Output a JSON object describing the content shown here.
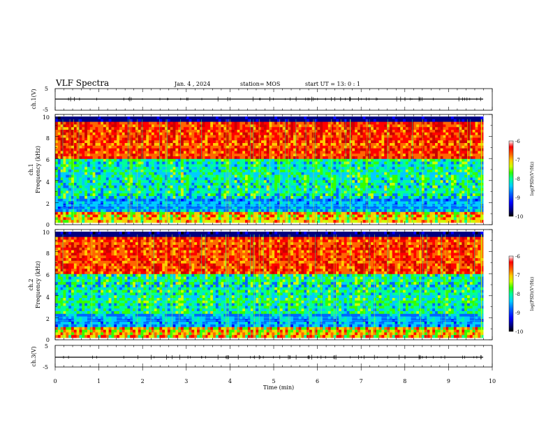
{
  "header": {
    "title": "VLF Spectra",
    "date": "Jan. 4 , 2024",
    "station": "station= MOS",
    "start": "start UT = 13: 0 : 1"
  },
  "colors": {
    "colormap": [
      "#000000",
      "#00007f",
      "#0000ff",
      "#0066ff",
      "#00ccff",
      "#00ff99",
      "#33ff00",
      "#ccff00",
      "#ffcc00",
      "#ff6600",
      "#ff0000",
      "#cc0000"
    ]
  },
  "chart_data": [
    {
      "type": "line",
      "name": "ch1-waveform",
      "ylabel": "ch.1(V)",
      "ylim": [
        -5,
        5
      ],
      "y_ticks": [
        "5",
        "-5"
      ],
      "xlim": [
        0,
        10
      ],
      "baseline_value": 0
    },
    {
      "type": "heatmap",
      "name": "ch1-spectrogram",
      "ylabel": "ch.1\nFrequency (kHz)",
      "ylabel_lines": [
        "ch.1",
        "Frequency (kHz)"
      ],
      "xlim": [
        0,
        9.83
      ],
      "ylim": [
        0,
        10
      ],
      "y_ticks": [
        "0",
        "2",
        "4",
        "6",
        "8",
        "10"
      ],
      "colorbar": {
        "label": "log(PSD)(V²/Hz)",
        "range": [
          -10,
          -6
        ],
        "ticks": [
          "-6",
          "-7",
          "-8",
          "-9",
          "-10"
        ]
      }
    },
    {
      "type": "heatmap",
      "name": "ch2-spectrogram",
      "ylabel": "ch.2\nFrequency (kHz)",
      "ylabel_lines": [
        "ch.2",
        "Frequency (kHz)"
      ],
      "xlim": [
        0,
        9.83
      ],
      "ylim": [
        0,
        10
      ],
      "y_ticks": [
        "0",
        "2",
        "4",
        "6",
        "8",
        "10"
      ],
      "colorbar": {
        "label": "log(PSD)(V²/Hz)",
        "range": [
          -10,
          -6
        ],
        "ticks": [
          "-6",
          "-7",
          "-8",
          "-9",
          "-10"
        ]
      }
    },
    {
      "type": "line",
      "name": "ch3-waveform",
      "ylabel": "ch.3(V)",
      "ylim": [
        -5,
        5
      ],
      "y_ticks": [
        "5",
        "-5"
      ],
      "xlim": [
        0,
        10
      ],
      "baseline_value": 0
    }
  ],
  "x_axis": {
    "label": "Time (min)",
    "ticks": [
      "0",
      "1",
      "2",
      "3",
      "4",
      "5",
      "6",
      "7",
      "8",
      "9",
      "10"
    ],
    "range": [
      0,
      10
    ]
  }
}
